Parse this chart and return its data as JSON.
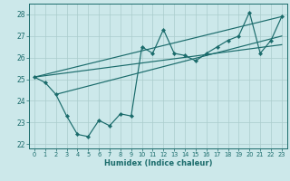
{
  "xlabel": "Humidex (Indice chaleur)",
  "xlim": [
    -0.5,
    23.5
  ],
  "ylim": [
    21.8,
    28.5
  ],
  "yticks": [
    22,
    23,
    24,
    25,
    26,
    27,
    28
  ],
  "xticks": [
    0,
    1,
    2,
    3,
    4,
    5,
    6,
    7,
    8,
    9,
    10,
    11,
    12,
    13,
    14,
    15,
    16,
    17,
    18,
    19,
    20,
    21,
    22,
    23
  ],
  "bg_color": "#cce8ea",
  "grid_color": "#aacccc",
  "line_color": "#1a6b6b",
  "y_main": [
    25.1,
    24.85,
    24.3,
    23.3,
    22.45,
    22.35,
    23.1,
    22.85,
    23.4,
    23.3,
    26.5,
    26.2,
    27.3,
    26.2,
    26.1,
    25.85,
    26.2,
    26.5,
    26.8,
    27.0,
    28.1,
    26.2,
    26.8,
    27.9
  ],
  "trend1_x": [
    0,
    23
  ],
  "trend1_y": [
    25.1,
    27.9
  ],
  "trend2_x": [
    0,
    23
  ],
  "trend2_y": [
    25.1,
    26.6
  ],
  "trend3_x": [
    2,
    23
  ],
  "trend3_y": [
    24.3,
    27.0
  ]
}
